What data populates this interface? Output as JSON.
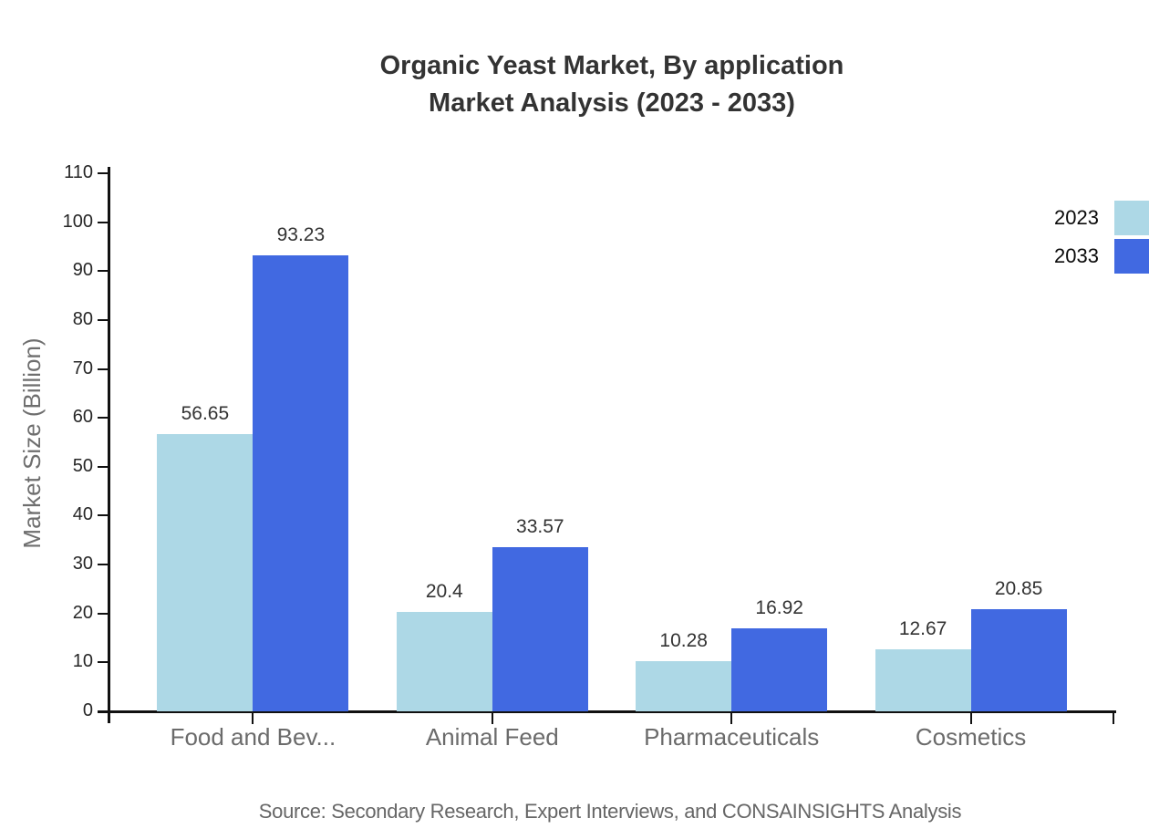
{
  "title": {
    "line1": "Organic Yeast Market, By application",
    "line2": "Market Analysis (2023 - 2033)"
  },
  "chart_data": {
    "type": "bar",
    "title": "Organic Yeast Market, By application Market Analysis (2023 - 2033)",
    "categories": [
      "Food and Bev...",
      "Animal Feed",
      "Pharmaceuticals",
      "Cosmetics"
    ],
    "series": [
      {
        "name": "2023",
        "color": "#ADD8E6",
        "values": [
          56.65,
          20.4,
          10.28,
          12.67
        ]
      },
      {
        "name": "2033",
        "color": "#4169E1",
        "values": [
          93.23,
          33.57,
          16.92,
          20.85
        ]
      }
    ],
    "value_labels": [
      "56.65",
      "93.23",
      "20.4",
      "33.57",
      "10.28",
      "16.92",
      "12.67",
      "20.85"
    ],
    "xlabel": "",
    "ylabel": "Market Size (Billion)",
    "ylim": [
      0,
      110
    ],
    "yticks": [
      0,
      10,
      20,
      30,
      40,
      50,
      60,
      70,
      80,
      90,
      100,
      110
    ],
    "grid": false,
    "legend_position": "top-right",
    "legend_entries": [
      "2023",
      "2033"
    ]
  },
  "source": "Source: Secondary Research, Expert Interviews, and CONSAINSIGHTS Analysis"
}
